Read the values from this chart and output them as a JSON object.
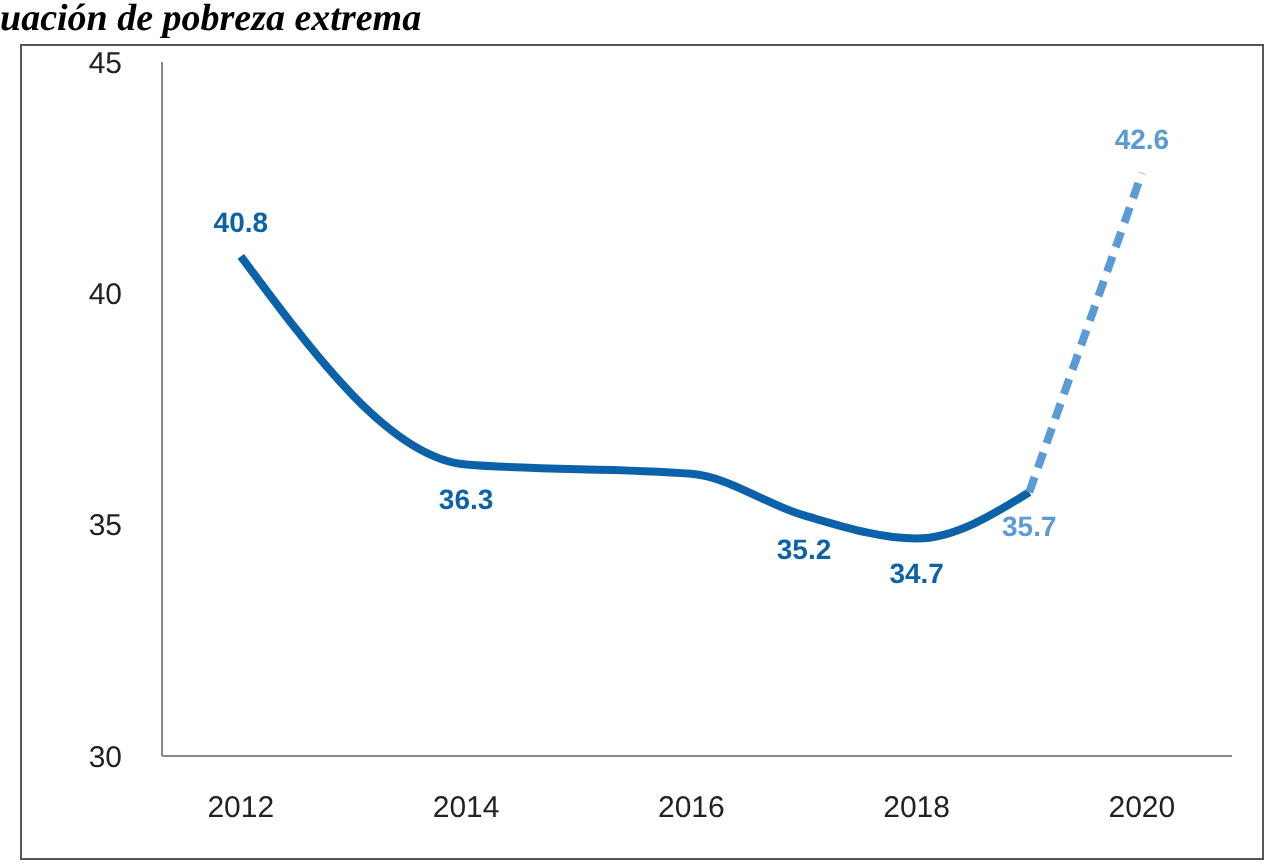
{
  "chart_data": {
    "type": "line",
    "title": "uación de pobreza extrema",
    "series": [
      {
        "color": "#0b62a8",
        "x": [
          2012,
          2014,
          2016,
          2017,
          2018,
          2019
        ],
        "values": [
          40.8,
          36.3,
          36.1,
          35.2,
          34.7,
          35.7
        ],
        "value_labels": [
          "40.8",
          "36.3",
          null,
          "35.2",
          "34.7",
          null
        ],
        "line_style": "solid"
      },
      {
        "color": "#5b9bd5",
        "x": [
          2019,
          2020
        ],
        "values": [
          35.7,
          42.6
        ],
        "value_labels": [
          "35.7",
          "42.6"
        ],
        "line_style": "dashed"
      }
    ],
    "xlim": [
      2011.3,
      2020.8
    ],
    "xticks": [
      2012,
      2014,
      2016,
      2018,
      2020
    ],
    "ylim": [
      30,
      45
    ],
    "yticks": [
      30,
      35,
      40,
      45
    ],
    "marker": "none"
  }
}
